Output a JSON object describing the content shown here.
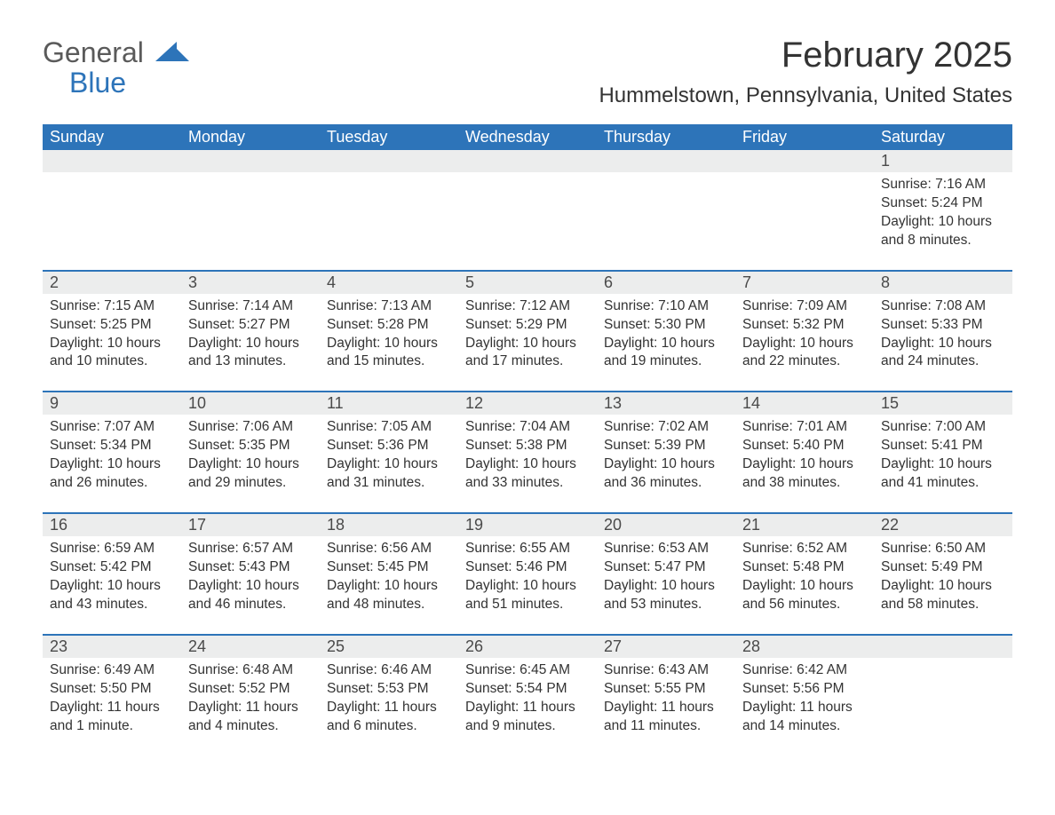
{
  "logo": {
    "text1": "General",
    "text2": "Blue"
  },
  "title": "February 2025",
  "location": "Hummelstown, Pennsylvania, United States",
  "colors": {
    "brand_blue": "#2d74b9",
    "header_bg": "#2d74b9",
    "header_text": "#ffffff",
    "daynum_bg": "#eceded",
    "text": "#333333",
    "logo_gray": "#5a5a5a",
    "page_bg": "#ffffff"
  },
  "typography": {
    "title_fontsize": 40,
    "location_fontsize": 24,
    "dayheader_fontsize": 18,
    "daynum_fontsize": 18,
    "body_fontsize": 15.5,
    "font_family": "Segoe UI"
  },
  "day_headers": [
    "Sunday",
    "Monday",
    "Tuesday",
    "Wednesday",
    "Thursday",
    "Friday",
    "Saturday"
  ],
  "weeks": [
    [
      null,
      null,
      null,
      null,
      null,
      null,
      {
        "n": "1",
        "sunrise": "Sunrise: 7:16 AM",
        "sunset": "Sunset: 5:24 PM",
        "daylight": "Daylight: 10 hours and 8 minutes."
      }
    ],
    [
      {
        "n": "2",
        "sunrise": "Sunrise: 7:15 AM",
        "sunset": "Sunset: 5:25 PM",
        "daylight": "Daylight: 10 hours and 10 minutes."
      },
      {
        "n": "3",
        "sunrise": "Sunrise: 7:14 AM",
        "sunset": "Sunset: 5:27 PM",
        "daylight": "Daylight: 10 hours and 13 minutes."
      },
      {
        "n": "4",
        "sunrise": "Sunrise: 7:13 AM",
        "sunset": "Sunset: 5:28 PM",
        "daylight": "Daylight: 10 hours and 15 minutes."
      },
      {
        "n": "5",
        "sunrise": "Sunrise: 7:12 AM",
        "sunset": "Sunset: 5:29 PM",
        "daylight": "Daylight: 10 hours and 17 minutes."
      },
      {
        "n": "6",
        "sunrise": "Sunrise: 7:10 AM",
        "sunset": "Sunset: 5:30 PM",
        "daylight": "Daylight: 10 hours and 19 minutes."
      },
      {
        "n": "7",
        "sunrise": "Sunrise: 7:09 AM",
        "sunset": "Sunset: 5:32 PM",
        "daylight": "Daylight: 10 hours and 22 minutes."
      },
      {
        "n": "8",
        "sunrise": "Sunrise: 7:08 AM",
        "sunset": "Sunset: 5:33 PM",
        "daylight": "Daylight: 10 hours and 24 minutes."
      }
    ],
    [
      {
        "n": "9",
        "sunrise": "Sunrise: 7:07 AM",
        "sunset": "Sunset: 5:34 PM",
        "daylight": "Daylight: 10 hours and 26 minutes."
      },
      {
        "n": "10",
        "sunrise": "Sunrise: 7:06 AM",
        "sunset": "Sunset: 5:35 PM",
        "daylight": "Daylight: 10 hours and 29 minutes."
      },
      {
        "n": "11",
        "sunrise": "Sunrise: 7:05 AM",
        "sunset": "Sunset: 5:36 PM",
        "daylight": "Daylight: 10 hours and 31 minutes."
      },
      {
        "n": "12",
        "sunrise": "Sunrise: 7:04 AM",
        "sunset": "Sunset: 5:38 PM",
        "daylight": "Daylight: 10 hours and 33 minutes."
      },
      {
        "n": "13",
        "sunrise": "Sunrise: 7:02 AM",
        "sunset": "Sunset: 5:39 PM",
        "daylight": "Daylight: 10 hours and 36 minutes."
      },
      {
        "n": "14",
        "sunrise": "Sunrise: 7:01 AM",
        "sunset": "Sunset: 5:40 PM",
        "daylight": "Daylight: 10 hours and 38 minutes."
      },
      {
        "n": "15",
        "sunrise": "Sunrise: 7:00 AM",
        "sunset": "Sunset: 5:41 PM",
        "daylight": "Daylight: 10 hours and 41 minutes."
      }
    ],
    [
      {
        "n": "16",
        "sunrise": "Sunrise: 6:59 AM",
        "sunset": "Sunset: 5:42 PM",
        "daylight": "Daylight: 10 hours and 43 minutes."
      },
      {
        "n": "17",
        "sunrise": "Sunrise: 6:57 AM",
        "sunset": "Sunset: 5:43 PM",
        "daylight": "Daylight: 10 hours and 46 minutes."
      },
      {
        "n": "18",
        "sunrise": "Sunrise: 6:56 AM",
        "sunset": "Sunset: 5:45 PM",
        "daylight": "Daylight: 10 hours and 48 minutes."
      },
      {
        "n": "19",
        "sunrise": "Sunrise: 6:55 AM",
        "sunset": "Sunset: 5:46 PM",
        "daylight": "Daylight: 10 hours and 51 minutes."
      },
      {
        "n": "20",
        "sunrise": "Sunrise: 6:53 AM",
        "sunset": "Sunset: 5:47 PM",
        "daylight": "Daylight: 10 hours and 53 minutes."
      },
      {
        "n": "21",
        "sunrise": "Sunrise: 6:52 AM",
        "sunset": "Sunset: 5:48 PM",
        "daylight": "Daylight: 10 hours and 56 minutes."
      },
      {
        "n": "22",
        "sunrise": "Sunrise: 6:50 AM",
        "sunset": "Sunset: 5:49 PM",
        "daylight": "Daylight: 10 hours and 58 minutes."
      }
    ],
    [
      {
        "n": "23",
        "sunrise": "Sunrise: 6:49 AM",
        "sunset": "Sunset: 5:50 PM",
        "daylight": "Daylight: 11 hours and 1 minute."
      },
      {
        "n": "24",
        "sunrise": "Sunrise: 6:48 AM",
        "sunset": "Sunset: 5:52 PM",
        "daylight": "Daylight: 11 hours and 4 minutes."
      },
      {
        "n": "25",
        "sunrise": "Sunrise: 6:46 AM",
        "sunset": "Sunset: 5:53 PM",
        "daylight": "Daylight: 11 hours and 6 minutes."
      },
      {
        "n": "26",
        "sunrise": "Sunrise: 6:45 AM",
        "sunset": "Sunset: 5:54 PM",
        "daylight": "Daylight: 11 hours and 9 minutes."
      },
      {
        "n": "27",
        "sunrise": "Sunrise: 6:43 AM",
        "sunset": "Sunset: 5:55 PM",
        "daylight": "Daylight: 11 hours and 11 minutes."
      },
      {
        "n": "28",
        "sunrise": "Sunrise: 6:42 AM",
        "sunset": "Sunset: 5:56 PM",
        "daylight": "Daylight: 11 hours and 14 minutes."
      },
      null
    ]
  ]
}
